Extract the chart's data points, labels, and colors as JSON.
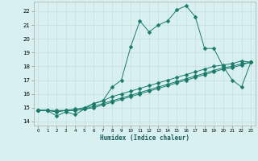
{
  "xlabel": "Humidex (Indice chaleur)",
  "x_values": [
    0,
    1,
    2,
    3,
    4,
    5,
    6,
    7,
    8,
    9,
    10,
    11,
    12,
    13,
    14,
    15,
    16,
    17,
    18,
    19,
    20,
    21,
    22,
    23
  ],
  "line1_y": [
    14.8,
    14.8,
    14.4,
    14.7,
    14.5,
    14.9,
    15.3,
    15.5,
    16.5,
    17.0,
    19.4,
    21.3,
    20.5,
    21.0,
    21.3,
    22.1,
    22.4,
    21.6,
    19.3,
    19.3,
    18.0,
    17.0,
    16.5,
    18.3
  ],
  "line2_y": [
    14.8,
    14.8,
    14.8,
    14.8,
    14.9,
    15.0,
    15.3,
    15.5,
    15.8,
    16.0,
    16.2,
    16.4,
    16.6,
    16.8,
    17.0,
    17.2,
    17.4,
    17.6,
    17.8,
    18.0,
    18.1,
    18.2,
    18.4,
    18.3
  ],
  "line3_y": [
    14.8,
    14.8,
    14.7,
    14.8,
    14.8,
    14.9,
    15.1,
    15.3,
    15.5,
    15.7,
    15.9,
    16.1,
    16.3,
    16.5,
    16.7,
    16.9,
    17.1,
    17.3,
    17.5,
    17.7,
    17.9,
    18.0,
    18.2,
    18.3
  ],
  "line4_y": [
    14.8,
    14.8,
    14.7,
    14.8,
    14.8,
    14.9,
    15.0,
    15.2,
    15.4,
    15.6,
    15.8,
    16.0,
    16.2,
    16.4,
    16.6,
    16.8,
    17.0,
    17.2,
    17.4,
    17.6,
    17.8,
    17.9,
    18.1,
    18.3
  ],
  "line_color": "#1a7a6a",
  "bg_color": "#d8f0f0",
  "grid_color": "#c8dede",
  "ylim": [
    13.7,
    22.7
  ],
  "yticks": [
    14,
    15,
    16,
    17,
    18,
    19,
    20,
    21,
    22
  ],
  "xlim": [
    -0.5,
    23.5
  ],
  "markersize": 2.5
}
